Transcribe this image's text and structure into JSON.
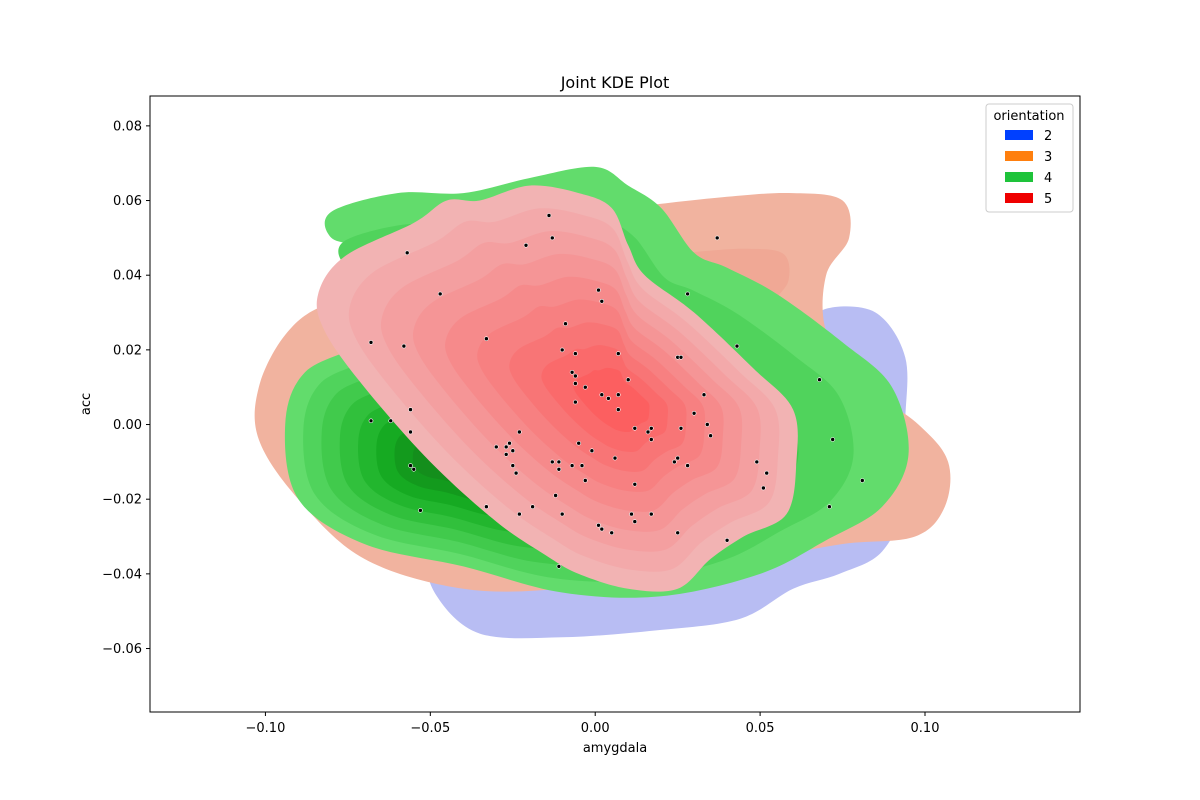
{
  "chart_data": {
    "type": "kde",
    "title": "Joint KDE Plot",
    "xlabel": "amygdala",
    "ylabel": "acc",
    "xlim": [
      -0.135,
      0.147
    ],
    "ylim": [
      -0.077,
      0.088
    ],
    "xticks": [
      -0.1,
      -0.05,
      0.0,
      0.05,
      0.1
    ],
    "xtick_labels": [
      "−0.10",
      "−0.05",
      "0.00",
      "0.05",
      "0.10"
    ],
    "yticks": [
      -0.06,
      -0.04,
      -0.02,
      0.0,
      0.02,
      0.04,
      0.06,
      0.08
    ],
    "ytick_labels": [
      "−0.06",
      "−0.04",
      "−0.02",
      "0.00",
      "0.02",
      "0.04",
      "0.06",
      "0.08"
    ],
    "grid": false,
    "legend": {
      "title": "orientation",
      "placement": "top-right",
      "entries": [
        {
          "label": "2",
          "color": "#0040ff"
        },
        {
          "label": "3",
          "color": "#ff7f0e"
        },
        {
          "label": "4",
          "color": "#1ec33a"
        },
        {
          "label": "5",
          "color": "#ef0000"
        }
      ]
    },
    "series": [
      {
        "legend_label": "2",
        "outer_color": "#b8bdf3",
        "outline": [
          [
            0.07,
            0.031
          ],
          [
            0.085,
            0.03
          ],
          [
            0.094,
            0.018
          ],
          [
            0.094,
            0.0
          ],
          [
            0.094,
            -0.02
          ],
          [
            0.087,
            -0.034
          ],
          [
            0.074,
            -0.04
          ],
          [
            0.06,
            -0.044
          ],
          [
            0.044,
            -0.052
          ],
          [
            0.02,
            -0.055
          ],
          [
            -0.01,
            -0.057
          ],
          [
            -0.035,
            -0.056
          ],
          [
            -0.048,
            -0.046
          ],
          [
            -0.049,
            -0.037
          ],
          [
            -0.03,
            -0.034
          ],
          [
            0.0,
            -0.032
          ],
          [
            0.03,
            -0.025
          ],
          [
            0.055,
            -0.01
          ],
          [
            0.065,
            0.01
          ],
          [
            0.066,
            0.025
          ]
        ]
      },
      {
        "legend_label": "3",
        "outer_color": "#f1b39f",
        "inner_colors": [
          "#f0a895",
          "#ef9e8b"
        ],
        "outline": [
          [
            0.01,
            0.058
          ],
          [
            0.04,
            0.061
          ],
          [
            0.06,
            0.062
          ],
          [
            0.075,
            0.06
          ],
          [
            0.077,
            0.05
          ],
          [
            0.07,
            0.04
          ],
          [
            0.07,
            0.025
          ],
          [
            0.08,
            0.012
          ],
          [
            0.098,
            0.0
          ],
          [
            0.107,
            -0.01
          ],
          [
            0.106,
            -0.022
          ],
          [
            0.097,
            -0.03
          ],
          [
            0.075,
            -0.032
          ],
          [
            0.05,
            -0.036
          ],
          [
            0.02,
            -0.04
          ],
          [
            -0.01,
            -0.044
          ],
          [
            -0.04,
            -0.044
          ],
          [
            -0.07,
            -0.036
          ],
          [
            -0.09,
            -0.02
          ],
          [
            -0.102,
            -0.004
          ],
          [
            -0.102,
            0.01
          ],
          [
            -0.094,
            0.024
          ],
          [
            -0.082,
            0.032
          ],
          [
            -0.06,
            0.036
          ],
          [
            -0.04,
            0.048
          ],
          [
            -0.02,
            0.054
          ]
        ]
      },
      {
        "legend_label": "4",
        "color_scale": [
          "#62dc6c",
          "#50d35c",
          "#41ca4c",
          "#31c03c",
          "#22b62e",
          "#16aa22",
          "#139a1d",
          "#148e1c"
        ],
        "outline": [
          [
            -0.04,
            0.062
          ],
          [
            -0.02,
            0.066
          ],
          [
            0.0,
            0.069
          ],
          [
            0.01,
            0.064
          ],
          [
            0.02,
            0.058
          ],
          [
            0.03,
            0.046
          ],
          [
            0.04,
            0.042
          ],
          [
            0.055,
            0.035
          ],
          [
            0.075,
            0.022
          ],
          [
            0.09,
            0.01
          ],
          [
            0.095,
            -0.008
          ],
          [
            0.087,
            -0.022
          ],
          [
            0.07,
            -0.031
          ],
          [
            0.05,
            -0.04
          ],
          [
            0.02,
            -0.046
          ],
          [
            -0.01,
            -0.045
          ],
          [
            -0.04,
            -0.038
          ],
          [
            -0.07,
            -0.032
          ],
          [
            -0.09,
            -0.02
          ],
          [
            -0.094,
            0.0
          ],
          [
            -0.088,
            0.014
          ],
          [
            -0.07,
            0.022
          ],
          [
            -0.062,
            0.032
          ],
          [
            -0.068,
            0.046
          ],
          [
            -0.08,
            0.05
          ],
          [
            -0.08,
            0.057
          ],
          [
            -0.06,
            0.062
          ]
        ],
        "peak": [
          -0.047,
          -0.01
        ]
      },
      {
        "legend_label": "5",
        "color_scale": [
          "#f2b3b3",
          "#f3a9aa",
          "#f49fa0",
          "#f59596",
          "#f68a8b",
          "#f78081",
          "#f87576",
          "#fa6a6b",
          "#fc5f60"
        ],
        "outline": [
          [
            -0.035,
            0.06
          ],
          [
            -0.02,
            0.064
          ],
          [
            -0.005,
            0.062
          ],
          [
            0.005,
            0.058
          ],
          [
            0.01,
            0.048
          ],
          [
            0.015,
            0.04
          ],
          [
            0.03,
            0.03
          ],
          [
            0.048,
            0.015
          ],
          [
            0.06,
            0.004
          ],
          [
            0.061,
            -0.01
          ],
          [
            0.058,
            -0.024
          ],
          [
            0.045,
            -0.03
          ],
          [
            0.035,
            -0.036
          ],
          [
            0.025,
            -0.044
          ],
          [
            0.01,
            -0.044
          ],
          [
            -0.005,
            -0.04
          ],
          [
            -0.015,
            -0.035
          ],
          [
            -0.03,
            -0.026
          ],
          [
            -0.05,
            -0.01
          ],
          [
            -0.07,
            0.01
          ],
          [
            -0.082,
            0.025
          ],
          [
            -0.084,
            0.035
          ],
          [
            -0.076,
            0.045
          ],
          [
            -0.055,
            0.054
          ],
          [
            -0.045,
            0.06
          ]
        ],
        "peak": [
          0.008,
          0.006
        ]
      }
    ],
    "points": [
      [
        -0.014,
        0.056
      ],
      [
        -0.013,
        0.05
      ],
      [
        -0.021,
        0.048
      ],
      [
        -0.057,
        0.046
      ],
      [
        0.037,
        0.05
      ],
      [
        0.001,
        0.036
      ],
      [
        0.002,
        0.033
      ],
      [
        -0.047,
        0.035
      ],
      [
        0.028,
        0.035
      ],
      [
        -0.009,
        0.027
      ],
      [
        -0.068,
        0.022
      ],
      [
        -0.058,
        0.021
      ],
      [
        -0.033,
        0.023
      ],
      [
        -0.01,
        0.02
      ],
      [
        -0.006,
        0.019
      ],
      [
        0.007,
        0.019
      ],
      [
        0.025,
        0.018
      ],
      [
        0.026,
        0.018
      ],
      [
        0.043,
        0.021
      ],
      [
        0.068,
        0.012
      ],
      [
        -0.007,
        0.014
      ],
      [
        -0.006,
        0.013
      ],
      [
        -0.006,
        0.011
      ],
      [
        -0.003,
        0.01
      ],
      [
        0.01,
        0.012
      ],
      [
        0.002,
        0.008
      ],
      [
        0.004,
        0.007
      ],
      [
        0.007,
        0.008
      ],
      [
        -0.006,
        0.006
      ],
      [
        0.007,
        0.004
      ],
      [
        0.033,
        0.008
      ],
      [
        0.03,
        0.003
      ],
      [
        -0.068,
        0.001
      ],
      [
        -0.062,
        0.001
      ],
      [
        -0.056,
        0.004
      ],
      [
        -0.056,
        -0.002
      ],
      [
        0.012,
        -0.001
      ],
      [
        0.017,
        -0.001
      ],
      [
        0.026,
        -0.001
      ],
      [
        0.034,
        0.0
      ],
      [
        0.016,
        -0.002
      ],
      [
        0.017,
        -0.004
      ],
      [
        0.035,
        -0.003
      ],
      [
        0.072,
        -0.004
      ],
      [
        -0.023,
        -0.002
      ],
      [
        -0.005,
        -0.005
      ],
      [
        -0.03,
        -0.006
      ],
      [
        -0.027,
        -0.006
      ],
      [
        -0.026,
        -0.005
      ],
      [
        -0.025,
        -0.007
      ],
      [
        -0.027,
        -0.008
      ],
      [
        -0.001,
        -0.007
      ],
      [
        0.006,
        -0.009
      ],
      [
        0.025,
        -0.009
      ],
      [
        0.024,
        -0.01
      ],
      [
        -0.013,
        -0.01
      ],
      [
        -0.011,
        -0.01
      ],
      [
        -0.011,
        -0.012
      ],
      [
        -0.007,
        -0.011
      ],
      [
        -0.004,
        -0.011
      ],
      [
        -0.056,
        -0.011
      ],
      [
        -0.055,
        -0.012
      ],
      [
        -0.025,
        -0.011
      ],
      [
        -0.024,
        -0.013
      ],
      [
        0.028,
        -0.011
      ],
      [
        0.049,
        -0.01
      ],
      [
        0.052,
        -0.013
      ],
      [
        -0.003,
        -0.015
      ],
      [
        0.012,
        -0.016
      ],
      [
        0.051,
        -0.017
      ],
      [
        0.081,
        -0.015
      ],
      [
        -0.012,
        -0.019
      ],
      [
        -0.033,
        -0.022
      ],
      [
        -0.019,
        -0.022
      ],
      [
        -0.053,
        -0.023
      ],
      [
        -0.023,
        -0.024
      ],
      [
        -0.01,
        -0.024
      ],
      [
        0.011,
        -0.024
      ],
      [
        0.017,
        -0.024
      ],
      [
        0.071,
        -0.022
      ],
      [
        0.012,
        -0.026
      ],
      [
        0.001,
        -0.027
      ],
      [
        0.002,
        -0.028
      ],
      [
        0.005,
        -0.029
      ],
      [
        0.025,
        -0.029
      ],
      [
        0.04,
        -0.031
      ],
      [
        -0.011,
        -0.038
      ]
    ]
  }
}
